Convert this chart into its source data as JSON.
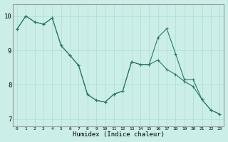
{
  "title": "",
  "xlabel": "Humidex (Indice chaleur)",
  "background_color": "#cceee8",
  "line_color": "#2a7a6a",
  "grid_color": "#aaddd5",
  "xlim": [
    -0.5,
    23.5
  ],
  "ylim": [
    6.8,
    10.35
  ],
  "yticks": [
    7,
    8,
    9,
    10
  ],
  "xticks": [
    0,
    1,
    2,
    3,
    4,
    5,
    6,
    7,
    8,
    9,
    10,
    11,
    12,
    13,
    14,
    15,
    16,
    17,
    18,
    19,
    20,
    21,
    22,
    23
  ],
  "line1_x": [
    0,
    1,
    2,
    3,
    4,
    5,
    6,
    7,
    8,
    9,
    10,
    11,
    12,
    13,
    14,
    15,
    16,
    17,
    18,
    19,
    20,
    21,
    22,
    23
  ],
  "line1_y": [
    9.62,
    10.0,
    9.83,
    9.76,
    9.94,
    9.14,
    8.86,
    8.56,
    7.72,
    7.55,
    7.5,
    7.73,
    7.82,
    8.67,
    8.59,
    8.59,
    9.38,
    9.63,
    8.9,
    8.15,
    8.15,
    7.57,
    7.27,
    7.15
  ],
  "line2_x": [
    0,
    1,
    2,
    3,
    4,
    5,
    6,
    7,
    8,
    9,
    10,
    11,
    12,
    13,
    14,
    15,
    16,
    17,
    18,
    19,
    20,
    21,
    22,
    23
  ],
  "line2_y": [
    9.62,
    10.0,
    9.83,
    9.76,
    9.94,
    9.14,
    8.86,
    8.56,
    7.72,
    7.55,
    7.5,
    7.73,
    7.82,
    8.67,
    8.59,
    8.59,
    8.72,
    8.45,
    8.3,
    8.1,
    7.95,
    7.57,
    7.27,
    7.15
  ]
}
